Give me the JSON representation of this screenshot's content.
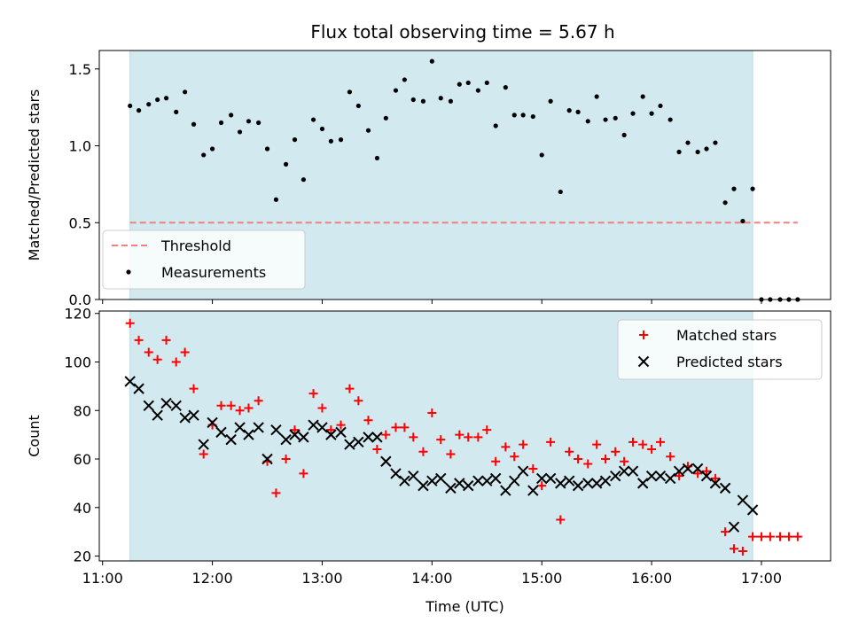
{
  "title": "Flux total observing time = 5.67 h",
  "chart_data": [
    {
      "type": "scatter",
      "ylabel": "Matched/Predicted stars",
      "ylim": [
        0,
        1.62
      ],
      "xlim": [
        10.97,
        17.63
      ],
      "yticks": [
        0.0,
        0.5,
        1.0,
        1.5
      ],
      "ytick_labels": [
        "0.0",
        "0.5",
        "1.0",
        "1.5"
      ],
      "shaded_span": [
        11.25,
        16.92
      ],
      "shade_color": "#d2e9ef",
      "threshold": {
        "label": "Threshold",
        "value": 0.5,
        "x_range": [
          11.25,
          17.33
        ],
        "color": "#f08080"
      },
      "legend": {
        "position": "lower-left",
        "entries": [
          "Threshold",
          "Measurements"
        ]
      },
      "series": [
        {
          "name": "Measurements",
          "marker": "dot",
          "color": "#000000",
          "points": [
            [
              11.25,
              1.26
            ],
            [
              11.33,
              1.23
            ],
            [
              11.42,
              1.27
            ],
            [
              11.5,
              1.3
            ],
            [
              11.58,
              1.31
            ],
            [
              11.67,
              1.22
            ],
            [
              11.75,
              1.35
            ],
            [
              11.83,
              1.14
            ],
            [
              11.92,
              0.94
            ],
            [
              12.0,
              0.98
            ],
            [
              12.08,
              1.15
            ],
            [
              12.17,
              1.2
            ],
            [
              12.25,
              1.09
            ],
            [
              12.33,
              1.16
            ],
            [
              12.42,
              1.15
            ],
            [
              12.5,
              0.98
            ],
            [
              12.58,
              0.65
            ],
            [
              12.67,
              0.88
            ],
            [
              12.75,
              1.04
            ],
            [
              12.83,
              0.78
            ],
            [
              12.92,
              1.17
            ],
            [
              13.0,
              1.11
            ],
            [
              13.08,
              1.03
            ],
            [
              13.17,
              1.04
            ],
            [
              13.25,
              1.35
            ],
            [
              13.33,
              1.26
            ],
            [
              13.42,
              1.1
            ],
            [
              13.5,
              0.92
            ],
            [
              13.58,
              1.18
            ],
            [
              13.67,
              1.36
            ],
            [
              13.75,
              1.43
            ],
            [
              13.83,
              1.3
            ],
            [
              13.92,
              1.29
            ],
            [
              14.0,
              1.55
            ],
            [
              14.08,
              1.31
            ],
            [
              14.17,
              1.29
            ],
            [
              14.25,
              1.4
            ],
            [
              14.33,
              1.41
            ],
            [
              14.42,
              1.36
            ],
            [
              14.5,
              1.41
            ],
            [
              14.58,
              1.13
            ],
            [
              14.67,
              1.38
            ],
            [
              14.75,
              1.2
            ],
            [
              14.83,
              1.2
            ],
            [
              14.92,
              1.19
            ],
            [
              15.0,
              0.94
            ],
            [
              15.08,
              1.29
            ],
            [
              15.17,
              0.7
            ],
            [
              15.25,
              1.23
            ],
            [
              15.33,
              1.22
            ],
            [
              15.42,
              1.16
            ],
            [
              15.5,
              1.32
            ],
            [
              15.58,
              1.17
            ],
            [
              15.67,
              1.18
            ],
            [
              15.75,
              1.07
            ],
            [
              15.83,
              1.21
            ],
            [
              15.92,
              1.32
            ],
            [
              16.0,
              1.21
            ],
            [
              16.08,
              1.26
            ],
            [
              16.17,
              1.17
            ],
            [
              16.25,
              0.96
            ],
            [
              16.33,
              1.02
            ],
            [
              16.42,
              0.96
            ],
            [
              16.5,
              0.98
            ],
            [
              16.58,
              1.02
            ],
            [
              16.67,
              0.63
            ],
            [
              16.75,
              0.72
            ],
            [
              16.83,
              0.51
            ],
            [
              16.92,
              0.72
            ],
            [
              17.0,
              0.0
            ],
            [
              17.08,
              0.0
            ],
            [
              17.17,
              0.0
            ],
            [
              17.25,
              0.0
            ],
            [
              17.33,
              0.0
            ]
          ]
        }
      ]
    },
    {
      "type": "scatter",
      "ylabel": "Count",
      "xlabel": "Time (UTC)",
      "ylim": [
        18,
        121
      ],
      "xlim": [
        10.97,
        17.63
      ],
      "yticks": [
        20,
        40,
        60,
        80,
        100,
        120
      ],
      "ytick_labels": [
        "20",
        "40",
        "60",
        "80",
        "100",
        "120"
      ],
      "xticks": [
        11,
        12,
        13,
        14,
        15,
        16,
        17
      ],
      "xtick_labels": [
        "11:00",
        "12:00",
        "13:00",
        "14:00",
        "15:00",
        "16:00",
        "17:00"
      ],
      "shaded_span": [
        11.25,
        16.92
      ],
      "shade_color": "#d2e9ef",
      "legend": {
        "position": "top-right",
        "entries": [
          "Matched stars",
          "Predicted stars"
        ]
      },
      "series": [
        {
          "name": "Matched stars",
          "marker": "plus",
          "color": "#ff0000",
          "points": [
            [
              11.25,
              116
            ],
            [
              11.33,
              109
            ],
            [
              11.42,
              104
            ],
            [
              11.5,
              101
            ],
            [
              11.58,
              109
            ],
            [
              11.67,
              100
            ],
            [
              11.75,
              104
            ],
            [
              11.83,
              89
            ],
            [
              11.92,
              62
            ],
            [
              12.0,
              74
            ],
            [
              12.08,
              82
            ],
            [
              12.17,
              82
            ],
            [
              12.25,
              80
            ],
            [
              12.33,
              81
            ],
            [
              12.42,
              84
            ],
            [
              12.5,
              59
            ],
            [
              12.58,
              46
            ],
            [
              12.67,
              60
            ],
            [
              12.75,
              72
            ],
            [
              12.83,
              54
            ],
            [
              12.92,
              87
            ],
            [
              13.0,
              81
            ],
            [
              13.08,
              72
            ],
            [
              13.17,
              74
            ],
            [
              13.25,
              89
            ],
            [
              13.33,
              84
            ],
            [
              13.42,
              76
            ],
            [
              13.5,
              64
            ],
            [
              13.58,
              70
            ],
            [
              13.67,
              73
            ],
            [
              13.75,
              73
            ],
            [
              13.83,
              69
            ],
            [
              13.92,
              63
            ],
            [
              14.0,
              79
            ],
            [
              14.08,
              68
            ],
            [
              14.17,
              62
            ],
            [
              14.25,
              70
            ],
            [
              14.33,
              69
            ],
            [
              14.42,
              69
            ],
            [
              14.5,
              72
            ],
            [
              14.58,
              59
            ],
            [
              14.67,
              65
            ],
            [
              14.75,
              61
            ],
            [
              14.83,
              66
            ],
            [
              14.92,
              56
            ],
            [
              15.0,
              49
            ],
            [
              15.08,
              67
            ],
            [
              15.17,
              35
            ],
            [
              15.25,
              63
            ],
            [
              15.33,
              60
            ],
            [
              15.42,
              58
            ],
            [
              15.5,
              66
            ],
            [
              15.58,
              60
            ],
            [
              15.67,
              63
            ],
            [
              15.75,
              59
            ],
            [
              15.83,
              67
            ],
            [
              15.92,
              66
            ],
            [
              16.0,
              64
            ],
            [
              16.08,
              67
            ],
            [
              16.17,
              61
            ],
            [
              16.25,
              53
            ],
            [
              16.33,
              57
            ],
            [
              16.42,
              54
            ],
            [
              16.5,
              55
            ],
            [
              16.58,
              52
            ],
            [
              16.67,
              30
            ],
            [
              16.75,
              23
            ],
            [
              16.83,
              22
            ],
            [
              16.92,
              28
            ],
            [
              17.0,
              28
            ],
            [
              17.08,
              28
            ],
            [
              17.17,
              28
            ],
            [
              17.25,
              28
            ],
            [
              17.33,
              28
            ]
          ]
        },
        {
          "name": "Predicted stars",
          "marker": "x",
          "color": "#000000",
          "points": [
            [
              11.25,
              92
            ],
            [
              11.33,
              89
            ],
            [
              11.42,
              82
            ],
            [
              11.5,
              78
            ],
            [
              11.58,
              83
            ],
            [
              11.67,
              82
            ],
            [
              11.75,
              77
            ],
            [
              11.83,
              78
            ],
            [
              11.92,
              66
            ],
            [
              12.0,
              75
            ],
            [
              12.08,
              71
            ],
            [
              12.17,
              68
            ],
            [
              12.25,
              73
            ],
            [
              12.33,
              70
            ],
            [
              12.42,
              73
            ],
            [
              12.5,
              60
            ],
            [
              12.58,
              72
            ],
            [
              12.67,
              68
            ],
            [
              12.75,
              70
            ],
            [
              12.83,
              69
            ],
            [
              12.92,
              74
            ],
            [
              13.0,
              73
            ],
            [
              13.08,
              70
            ],
            [
              13.17,
              71
            ],
            [
              13.25,
              66
            ],
            [
              13.33,
              67
            ],
            [
              13.42,
              69
            ],
            [
              13.5,
              69
            ],
            [
              13.58,
              59
            ],
            [
              13.67,
              54
            ],
            [
              13.75,
              51
            ],
            [
              13.83,
              53
            ],
            [
              13.92,
              49
            ],
            [
              14.0,
              51
            ],
            [
              14.08,
              52
            ],
            [
              14.17,
              48
            ],
            [
              14.25,
              50
            ],
            [
              14.33,
              49
            ],
            [
              14.42,
              51
            ],
            [
              14.5,
              51
            ],
            [
              14.58,
              52
            ],
            [
              14.67,
              47
            ],
            [
              14.75,
              51
            ],
            [
              14.83,
              55
            ],
            [
              14.92,
              47
            ],
            [
              15.0,
              52
            ],
            [
              15.08,
              52
            ],
            [
              15.17,
              50
            ],
            [
              15.25,
              51
            ],
            [
              15.33,
              49
            ],
            [
              15.42,
              50
            ],
            [
              15.5,
              50
            ],
            [
              15.58,
              51
            ],
            [
              15.67,
              53
            ],
            [
              15.75,
              55
            ],
            [
              15.83,
              55
            ],
            [
              15.92,
              50
            ],
            [
              16.0,
              53
            ],
            [
              16.08,
              53
            ],
            [
              16.17,
              52
            ],
            [
              16.25,
              55
            ],
            [
              16.33,
              56
            ],
            [
              16.42,
              56
            ],
            [
              16.5,
              53
            ],
            [
              16.58,
              50
            ],
            [
              16.67,
              48
            ],
            [
              16.75,
              32
            ],
            [
              16.83,
              43
            ],
            [
              16.92,
              39
            ]
          ]
        }
      ]
    }
  ]
}
